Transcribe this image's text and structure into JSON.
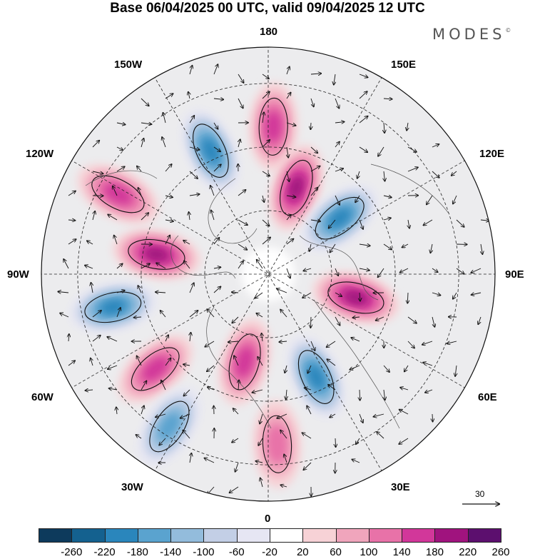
{
  "title": "Base 06/04/2025 00 UTC, valid 09/04/2025 12 UTC",
  "brand": "MODES",
  "brand_mark": "©",
  "longitude_labels": {
    "top": "180",
    "bottom": "0",
    "left": "90W",
    "right": "90E",
    "upper_left": "150W",
    "upper_right": "150E",
    "mid_upper_left": "120W",
    "mid_upper_right": "120E",
    "mid_lower_left": "60W",
    "mid_lower_right": "60E",
    "lower_left": "30W",
    "lower_right": "30E"
  },
  "vector_scale": {
    "label": "30"
  },
  "colorbar": {
    "ticks": [
      "-260",
      "-220",
      "-180",
      "-140",
      "-100",
      "-60",
      "-20",
      "20",
      "60",
      "100",
      "140",
      "180",
      "220",
      "260"
    ],
    "colors": [
      "#0d3a5c",
      "#14618f",
      "#2a86bc",
      "#5aa3cf",
      "#93bcdc",
      "#c3cfe6",
      "#e6e6f3",
      "#ffffff",
      "#f7d2d6",
      "#f0a5bc",
      "#e872a8",
      "#d2379a",
      "#a0137e",
      "#5c0f6e"
    ]
  },
  "anomaly_centers": [
    {
      "name": "neg-150w",
      "lon": -155,
      "r": 0.6,
      "sign": -1,
      "strength": 4
    },
    {
      "name": "pos-180",
      "lon": 178,
      "r": 0.65,
      "sign": 1,
      "strength": 3
    },
    {
      "name": "pos-165e",
      "lon": 162,
      "r": 0.4,
      "sign": 1,
      "strength": 4
    },
    {
      "name": "neg-135e",
      "lon": 128,
      "r": 0.4,
      "sign": -1,
      "strength": 4
    },
    {
      "name": "pos-120w",
      "lon": -118,
      "r": 0.75,
      "sign": 1,
      "strength": 3
    },
    {
      "name": "pos-100w",
      "lon": -100,
      "r": 0.5,
      "sign": 1,
      "strength": 4
    },
    {
      "name": "neg-80w",
      "lon": -78,
      "r": 0.7,
      "sign": -1,
      "strength": 4
    },
    {
      "name": "pos-80e",
      "lon": 75,
      "r": 0.4,
      "sign": 1,
      "strength": 4
    },
    {
      "name": "neg-30e",
      "lon": 25,
      "r": 0.5,
      "sign": -1,
      "strength": 4
    },
    {
      "name": "pos-15w",
      "lon": -15,
      "r": 0.4,
      "sign": 1,
      "strength": 3
    },
    {
      "name": "pos-50w",
      "lon": -50,
      "r": 0.65,
      "sign": 1,
      "strength": 3
    },
    {
      "name": "neg-35w",
      "lon": -33,
      "r": 0.8,
      "sign": -1,
      "strength": 3
    },
    {
      "name": "pos-5e",
      "lon": 3,
      "r": 0.75,
      "sign": 1,
      "strength": 2
    }
  ]
}
